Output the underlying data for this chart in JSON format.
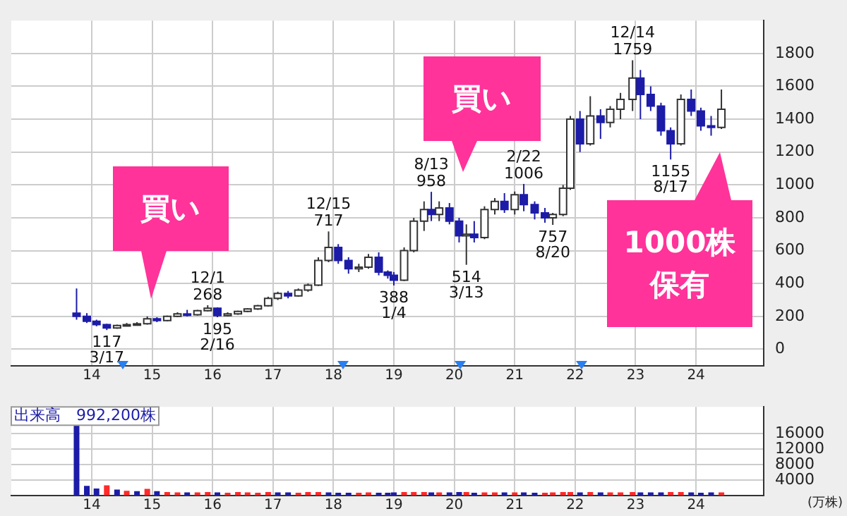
{
  "chart_data": [
    {
      "type": "candlestick",
      "xlim": [
        2012.67,
        2025.12
      ],
      "ylim": [
        -100,
        2000
      ],
      "grid": true,
      "xticks": [
        {
          "value": 2014,
          "label": "14"
        },
        {
          "value": 2015,
          "label": "15"
        },
        {
          "value": 2016,
          "label": "16"
        },
        {
          "value": 2017,
          "label": "17"
        },
        {
          "value": 2018,
          "label": "18"
        },
        {
          "value": 2019,
          "label": "19"
        },
        {
          "value": 2020,
          "label": "20"
        },
        {
          "value": 2021,
          "label": "21"
        },
        {
          "value": 2022,
          "label": "22"
        },
        {
          "value": 2023,
          "label": "23"
        },
        {
          "value": 2024,
          "label": "24"
        }
      ],
      "yticks": [
        0,
        200,
        400,
        600,
        800,
        1000,
        1200,
        1400,
        1600,
        1800
      ],
      "x": [
        2013.75,
        2013.92,
        2014.08,
        2014.25,
        2014.42,
        2014.58,
        2014.75,
        2014.92,
        2015.08,
        2015.25,
        2015.42,
        2015.58,
        2015.75,
        2015.92,
        2016.08,
        2016.25,
        2016.42,
        2016.58,
        2016.75,
        2016.92,
        2017.08,
        2017.25,
        2017.42,
        2017.58,
        2017.75,
        2017.92,
        2018.08,
        2018.25,
        2018.42,
        2018.58,
        2018.75,
        2018.9,
        2019.0,
        2019.17,
        2019.33,
        2019.5,
        2019.62,
        2019.75,
        2019.92,
        2020.08,
        2020.2,
        2020.33,
        2020.5,
        2020.67,
        2020.83,
        2021.0,
        2021.15,
        2021.33,
        2021.5,
        2021.63,
        2021.8,
        2021.92,
        2022.08,
        2022.25,
        2022.42,
        2022.58,
        2022.75,
        2022.95,
        2023.08,
        2023.25,
        2023.42,
        2023.58,
        2023.75,
        2023.92,
        2024.08,
        2024.25,
        2024.42
      ],
      "ohlc": [
        [
          220,
          370,
          180,
          200
        ],
        [
          200,
          220,
          160,
          170
        ],
        [
          170,
          180,
          140,
          150
        ],
        [
          150,
          155,
          117,
          130
        ],
        [
          130,
          150,
          125,
          145
        ],
        [
          145,
          160,
          140,
          150
        ],
        [
          150,
          165,
          145,
          155
        ],
        [
          155,
          200,
          150,
          185
        ],
        [
          185,
          195,
          165,
          175
        ],
        [
          175,
          205,
          170,
          200
        ],
        [
          200,
          225,
          195,
          215
        ],
        [
          215,
          240,
          200,
          210
        ],
        [
          210,
          240,
          205,
          235
        ],
        [
          235,
          268,
          230,
          250
        ],
        [
          250,
          255,
          195,
          205
        ],
        [
          205,
          225,
          200,
          215
        ],
        [
          215,
          235,
          210,
          230
        ],
        [
          230,
          250,
          225,
          245
        ],
        [
          245,
          270,
          240,
          265
        ],
        [
          265,
          320,
          260,
          310
        ],
        [
          310,
          350,
          300,
          340
        ],
        [
          340,
          355,
          310,
          325
        ],
        [
          325,
          370,
          320,
          360
        ],
        [
          360,
          400,
          350,
          390
        ],
        [
          390,
          560,
          385,
          540
        ],
        [
          540,
          717,
          530,
          620
        ],
        [
          620,
          640,
          520,
          540
        ],
        [
          540,
          560,
          460,
          490
        ],
        [
          490,
          520,
          470,
          500
        ],
        [
          500,
          580,
          490,
          560
        ],
        [
          560,
          590,
          450,
          470
        ],
        [
          470,
          480,
          430,
          450
        ],
        [
          450,
          470,
          388,
          420
        ],
        [
          420,
          620,
          415,
          600
        ],
        [
          600,
          800,
          590,
          780
        ],
        [
          780,
          900,
          720,
          850
        ],
        [
          850,
          958,
          780,
          820
        ],
        [
          820,
          900,
          780,
          860
        ],
        [
          860,
          890,
          760,
          780
        ],
        [
          780,
          800,
          650,
          690
        ],
        [
          690,
          760,
          514,
          700
        ],
        [
          700,
          780,
          650,
          680
        ],
        [
          680,
          870,
          670,
          850
        ],
        [
          850,
          920,
          820,
          900
        ],
        [
          900,
          950,
          830,
          850
        ],
        [
          850,
          960,
          820,
          940
        ],
        [
          940,
          1006,
          840,
          880
        ],
        [
          880,
          900,
          790,
          830
        ],
        [
          830,
          860,
          770,
          800
        ],
        [
          800,
          830,
          757,
          820
        ],
        [
          820,
          1000,
          810,
          980
        ],
        [
          980,
          1420,
          970,
          1400
        ],
        [
          1400,
          1450,
          1200,
          1250
        ],
        [
          1250,
          1540,
          1240,
          1420
        ],
        [
          1420,
          1460,
          1280,
          1380
        ],
        [
          1380,
          1480,
          1350,
          1460
        ],
        [
          1460,
          1560,
          1400,
          1520
        ],
        [
          1520,
          1759,
          1450,
          1650
        ],
        [
          1650,
          1700,
          1400,
          1550
        ],
        [
          1550,
          1600,
          1450,
          1480
        ],
        [
          1480,
          1500,
          1300,
          1330
        ],
        [
          1330,
          1350,
          1155,
          1250
        ],
        [
          1250,
          1550,
          1240,
          1520
        ],
        [
          1520,
          1580,
          1420,
          1450
        ],
        [
          1450,
          1470,
          1330,
          1360
        ],
        [
          1360,
          1420,
          1300,
          1350
        ],
        [
          1350,
          1580,
          1340,
          1460
        ]
      ],
      "annotations": [
        {
          "text": "117\n3/17",
          "x": 2014.25,
          "y": 117
        },
        {
          "text": "12/1\n268",
          "x": 2015.92,
          "y": 268
        },
        {
          "text": "195\n2/16",
          "x": 2016.08,
          "y": 195
        },
        {
          "text": "12/15\n717",
          "x": 2017.92,
          "y": 717
        },
        {
          "text": "388\n1/4",
          "x": 2019.0,
          "y": 388
        },
        {
          "text": "8/13\n958",
          "x": 2019.62,
          "y": 958
        },
        {
          "text": "514\n3/13",
          "x": 2020.2,
          "y": 514
        },
        {
          "text": "2/22\n1006",
          "x": 2021.15,
          "y": 1006
        },
        {
          "text": "757\n8/20",
          "x": 2021.63,
          "y": 757
        },
        {
          "text": "12/14\n1759",
          "x": 2022.95,
          "y": 1759
        },
        {
          "text": "1155\n8/17",
          "x": 2023.58,
          "y": 1155
        },
        "買い",
        "買い",
        "1000株保有"
      ]
    },
    {
      "type": "bar",
      "title": "出来高　992,200株",
      "ylabel": "(万株)",
      "grid": true,
      "xlim": [
        2012.67,
        2025.12
      ],
      "ylim": [
        0,
        23000
      ],
      "xticks": [
        {
          "value": 2014,
          "label": "14"
        },
        {
          "value": 2015,
          "label": "15"
        },
        {
          "value": 2016,
          "label": "16"
        },
        {
          "value": 2017,
          "label": "17"
        },
        {
          "value": 2018,
          "label": "18"
        },
        {
          "value": 2019,
          "label": "19"
        },
        {
          "value": 2020,
          "label": "20"
        },
        {
          "value": 2021,
          "label": "21"
        },
        {
          "value": 2022,
          "label": "22"
        },
        {
          "value": 2023,
          "label": "23"
        },
        {
          "value": 2024,
          "label": "24"
        }
      ],
      "yticks": [
        {
          "value": 0,
          "label": null
        },
        4000,
        8000,
        12000,
        16000
      ],
      "x": [
        2013.75,
        2013.92,
        2014.08,
        2014.25,
        2014.42,
        2014.58,
        2014.75,
        2014.92,
        2015.08,
        2015.25,
        2015.42,
        2015.58,
        2015.75,
        2015.92,
        2016.08,
        2016.25,
        2016.42,
        2016.58,
        2016.75,
        2016.92,
        2017.08,
        2017.25,
        2017.42,
        2017.58,
        2017.75,
        2017.92,
        2018.08,
        2018.25,
        2018.42,
        2018.58,
        2018.75,
        2018.9,
        2019.0,
        2019.17,
        2019.33,
        2019.5,
        2019.62,
        2019.75,
        2019.92,
        2020.08,
        2020.2,
        2020.33,
        2020.5,
        2020.67,
        2020.83,
        2021.0,
        2021.15,
        2021.33,
        2021.5,
        2021.63,
        2021.8,
        2021.92,
        2022.08,
        2022.25,
        2022.42,
        2022.58,
        2022.75,
        2022.95,
        2023.08,
        2023.25,
        2023.42,
        2023.58,
        2023.75,
        2023.92,
        2024.08,
        2024.25,
        2024.42
      ],
      "values": [
        18500,
        2500,
        1800,
        2600,
        1500,
        1200,
        1100,
        1700,
        1100,
        900,
        800,
        800,
        800,
        900,
        800,
        700,
        900,
        800,
        700,
        900,
        800,
        800,
        700,
        900,
        900,
        800,
        700,
        700,
        700,
        800,
        700,
        700,
        800,
        900,
        900,
        900,
        800,
        800,
        800,
        900,
        900,
        700,
        800,
        800,
        800,
        800,
        800,
        700,
        700,
        800,
        900,
        900,
        800,
        900,
        800,
        800,
        800,
        900,
        800,
        800,
        800,
        900,
        900,
        800,
        700,
        800,
        800
      ],
      "colors": [
        "#1c1ca8",
        "#1c1ca8",
        "#1c1ca8",
        "#ff2a2a",
        "#1c1ca8",
        "#ff2a2a",
        "#1c1ca8",
        "#ff2a2a",
        "#1c1ca8",
        "#ff2a2a",
        "#ff2a2a",
        "#1c1ca8",
        "#ff2a2a",
        "#ff2a2a",
        "#1c1ca8",
        "#ff2a2a",
        "#ff2a2a",
        "#ff2a2a",
        "#ff2a2a",
        "#ff2a2a",
        "#1c1ca8",
        "#1c1ca8",
        "#ff2a2a",
        "#ff2a2a",
        "#ff2a2a",
        "#1c1ca8",
        "#1c1ca8",
        "#1c1ca8",
        "#ff2a2a",
        "#ff2a2a",
        "#1c1ca8",
        "#1c1ca8",
        "#1c1ca8",
        "#ff2a2a",
        "#ff2a2a",
        "#ff2a2a",
        "#1c1ca8",
        "#ff2a2a",
        "#1c1ca8",
        "#1c1ca8",
        "#ff2a2a",
        "#1c1ca8",
        "#ff2a2a",
        "#ff2a2a",
        "#1c1ca8",
        "#ff2a2a",
        "#1c1ca8",
        "#1c1ca8",
        "#ff2a2a",
        "#ff2a2a",
        "#ff2a2a",
        "#ff2a2a",
        "#1c1ca8",
        "#ff2a2a",
        "#1c1ca8",
        "#ff2a2a",
        "#ff2a2a",
        "#ff2a2a",
        "#1c1ca8",
        "#1c1ca8",
        "#1c1ca8",
        "#ff2a2a",
        "#ff2a2a",
        "#1c1ca8",
        "#1c1ca8",
        "#1c1ca8",
        "#ff2a2a"
      ]
    }
  ]
}
